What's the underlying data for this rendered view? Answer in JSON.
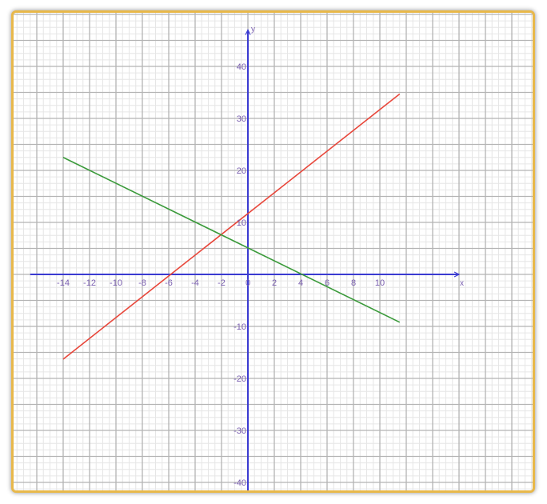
{
  "chart_data": {
    "type": "line",
    "xlabel": "x",
    "ylabel": "y",
    "xlim": [
      -18,
      21
    ],
    "ylim": [
      -41,
      46
    ],
    "x_ticks": [
      -14,
      -12,
      -10,
      -8,
      -6,
      -4,
      -2,
      0,
      2,
      4,
      6,
      8,
      10
    ],
    "y_ticks": [
      40,
      30,
      20,
      10,
      -10,
      -20,
      -30,
      -40
    ],
    "grid": true,
    "series": [
      {
        "color": "#e8463a",
        "x": [
          -14,
          11.5
        ],
        "y": [
          -16.3,
          34.7
        ]
      },
      {
        "color": "#3a9a3a",
        "x": [
          -14,
          11.5
        ],
        "y": [
          22.5,
          -9.2
        ]
      }
    ],
    "colors": {
      "axis": "#3b3bd1",
      "grid_major": "#b4b4b4",
      "grid_minor": "#e6e6e6",
      "frame_border": "#e8b84a",
      "tick_text": "#7a5fb0"
    }
  }
}
